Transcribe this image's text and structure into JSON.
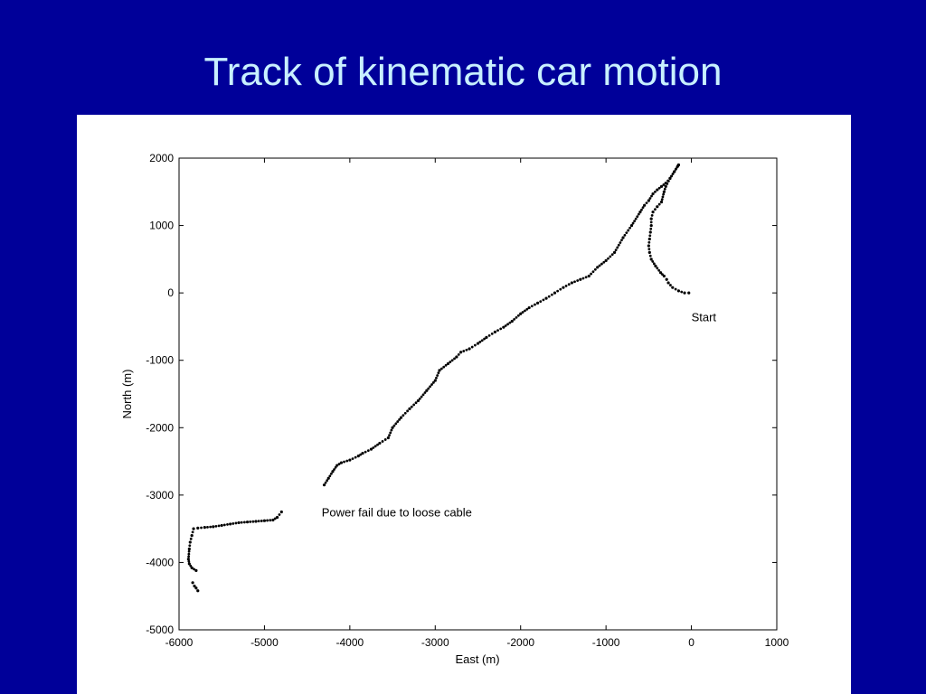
{
  "slide": {
    "title": "Track of kinematic car motion",
    "background_color": "#000099",
    "title_color": "#c8f0ff"
  },
  "chart_data": {
    "type": "scatter",
    "title": "",
    "xlabel": "East (m)",
    "ylabel": "North (m)",
    "xlim": [
      -6000,
      1000
    ],
    "ylim": [
      -5000,
      2000
    ],
    "xticks": [
      -6000,
      -5000,
      -4000,
      -3000,
      -2000,
      -1000,
      0,
      1000
    ],
    "yticks": [
      2000,
      1000,
      0,
      -1000,
      -2000,
      -3000,
      -4000,
      -5000
    ],
    "grid": false,
    "marker_color": "#000000",
    "annotations": [
      {
        "text": "Start",
        "x": 0,
        "y": -420
      },
      {
        "text": "Power fail due to loose cable",
        "x": -4330,
        "y": -3320
      }
    ],
    "segments": [
      {
        "x": [
          -30,
          -80,
          -150,
          -220,
          -270,
          -290,
          -320,
          -360,
          -420,
          -470,
          -490,
          -500,
          -490,
          -480,
          -470,
          -470,
          -450,
          -400,
          -350,
          -320,
          -300,
          -250,
          -200,
          -160,
          -150
        ],
        "y": [
          0,
          0,
          30,
          80,
          150,
          200,
          250,
          300,
          400,
          500,
          600,
          700,
          800,
          900,
          1000,
          1100,
          1200,
          1280,
          1350,
          1500,
          1580,
          1700,
          1800,
          1880,
          1900
        ]
      },
      {
        "x": [
          -150,
          -200,
          -250,
          -300,
          -350,
          -400,
          -450,
          -500,
          -550,
          -600,
          -700,
          -800,
          -900,
          -1000,
          -1100,
          -1200,
          -1300,
          -1400,
          -1500,
          -1600,
          -1700,
          -1800,
          -1900,
          -2000,
          -2100,
          -2200,
          -2300,
          -2400,
          -2500,
          -2600,
          -2700,
          -2750,
          -2850,
          -2950,
          -3000,
          -3100,
          -3200,
          -3300,
          -3400,
          -3500,
          -3550,
          -3650,
          -3750,
          -3850,
          -3900,
          -4000,
          -4100,
          -4150,
          -4200,
          -4250,
          -4300
        ],
        "y": [
          1900,
          1800,
          1700,
          1630,
          1580,
          1530,
          1470,
          1370,
          1300,
          1200,
          1000,
          820,
          600,
          480,
          380,
          250,
          200,
          150,
          80,
          0,
          -80,
          -150,
          -220,
          -310,
          -420,
          -510,
          -580,
          -660,
          -750,
          -830,
          -880,
          -950,
          -1050,
          -1150,
          -1300,
          -1450,
          -1600,
          -1720,
          -1850,
          -2000,
          -2150,
          -2230,
          -2320,
          -2380,
          -2420,
          -2480,
          -2520,
          -2560,
          -2650,
          -2750,
          -2850
        ]
      },
      {
        "x": [
          -4800,
          -4850,
          -4900,
          -5000,
          -5100,
          -5200,
          -5300,
          -5400,
          -5500,
          -5600,
          -5700,
          -5780,
          -5830,
          -5850,
          -5870,
          -5880,
          -5890,
          -5880,
          -5850,
          -5800
        ],
        "y": [
          -3250,
          -3330,
          -3370,
          -3380,
          -3390,
          -3400,
          -3410,
          -3430,
          -3450,
          -3470,
          -3480,
          -3490,
          -3500,
          -3600,
          -3700,
          -3800,
          -3950,
          -4020,
          -4080,
          -4120
        ]
      },
      {
        "x": [
          -5840,
          -5820,
          -5800,
          -5780
        ],
        "y": [
          -4300,
          -4350,
          -4380,
          -4420
        ]
      }
    ]
  }
}
